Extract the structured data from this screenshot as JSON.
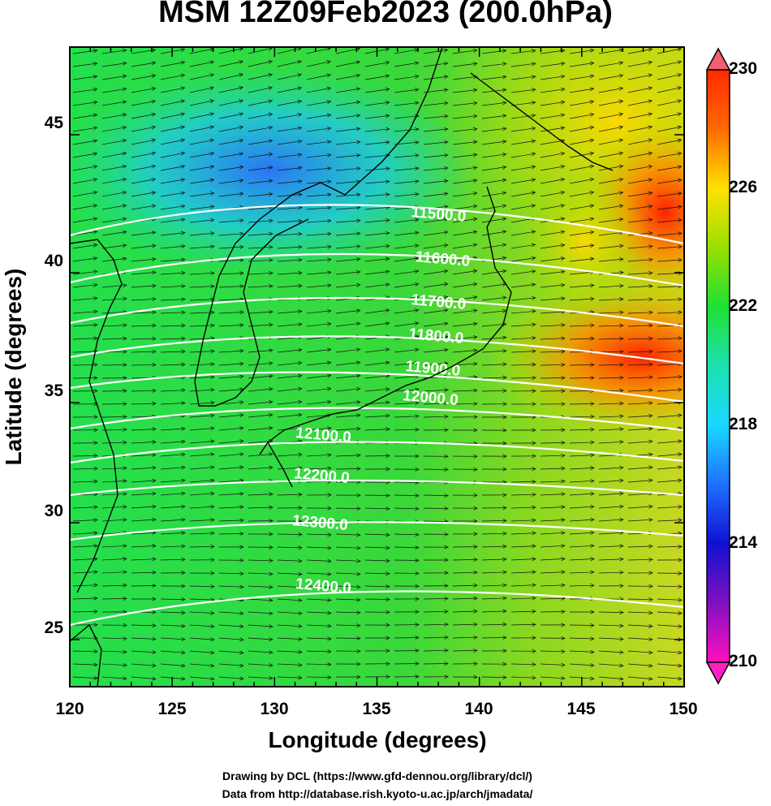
{
  "title": "MSM 12Z09Feb2023 (200.0hPa)",
  "x_axis": {
    "label": "Longitude (degrees)",
    "ticks": [
      "120",
      "125",
      "130",
      "135",
      "140",
      "145",
      "150"
    ]
  },
  "y_axis": {
    "label": "Latitude  (degrees)",
    "ticks": [
      "45",
      "40",
      "35",
      "30",
      "25"
    ]
  },
  "colorbar": {
    "ticks": [
      "230",
      "226",
      "222",
      "218",
      "214",
      "210"
    ],
    "min": 210,
    "max": 230
  },
  "contours": [
    "11500.0",
    "11600.0",
    "11700.0",
    "11800.0",
    "11900.0",
    "12000.0",
    "12100.0",
    "12200.0",
    "12300.0",
    "12400.0"
  ],
  "credits": {
    "line1": "Drawing by DCL (https://www.gfd-dennou.org/library/dcl/)",
    "line2": "Data from http://database.rish.kyoto-u.ac.jp/arch/jmadata/"
  },
  "colors": {
    "warm": "#ff3a00",
    "green": "#22d84a",
    "cyan": "#19e3e3",
    "blue": "#1f5cff"
  }
}
